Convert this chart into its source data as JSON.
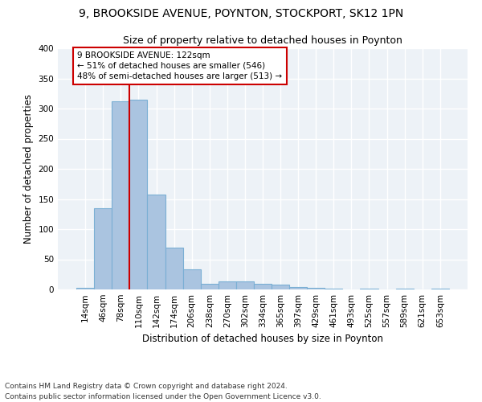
{
  "title1": "9, BROOKSIDE AVENUE, POYNTON, STOCKPORT, SK12 1PN",
  "title2": "Size of property relative to detached houses in Poynton",
  "xlabel": "Distribution of detached houses by size in Poynton",
  "ylabel": "Number of detached properties",
  "footnote": "Contains HM Land Registry data © Crown copyright and database right 2024.\nContains public sector information licensed under the Open Government Licence v3.0.",
  "bar_labels": [
    "14sqm",
    "46sqm",
    "78sqm",
    "110sqm",
    "142sqm",
    "174sqm",
    "206sqm",
    "238sqm",
    "270sqm",
    "302sqm",
    "334sqm",
    "365sqm",
    "397sqm",
    "429sqm",
    "461sqm",
    "493sqm",
    "525sqm",
    "557sqm",
    "589sqm",
    "621sqm",
    "653sqm"
  ],
  "bar_values": [
    3,
    135,
    312,
    315,
    157,
    70,
    33,
    10,
    14,
    14,
    10,
    8,
    4,
    3,
    1,
    0,
    1,
    0,
    1,
    0,
    2
  ],
  "bar_color": "#aac4e0",
  "bar_edgecolor": "#7aafd4",
  "bar_linewidth": 0.8,
  "vline_bar_index": 3,
  "vline_color": "#cc0000",
  "vline_linewidth": 1.5,
  "annotation_line1": "9 BROOKSIDE AVENUE: 122sqm",
  "annotation_line2": "← 51% of detached houses are smaller (546)",
  "annotation_line3": "48% of semi-detached houses are larger (513) →",
  "annotation_box_edgecolor": "#cc0000",
  "annotation_box_facecolor": "#ffffff",
  "annotation_fontsize": 7.5,
  "bg_color": "#edf2f7",
  "grid_color": "#ffffff",
  "ylim": [
    0,
    400
  ],
  "yticks": [
    0,
    50,
    100,
    150,
    200,
    250,
    300,
    350,
    400
  ],
  "title1_fontsize": 10,
  "title2_fontsize": 9,
  "xlabel_fontsize": 8.5,
  "ylabel_fontsize": 8.5,
  "tick_fontsize": 7.5,
  "footnote_fontsize": 6.5
}
